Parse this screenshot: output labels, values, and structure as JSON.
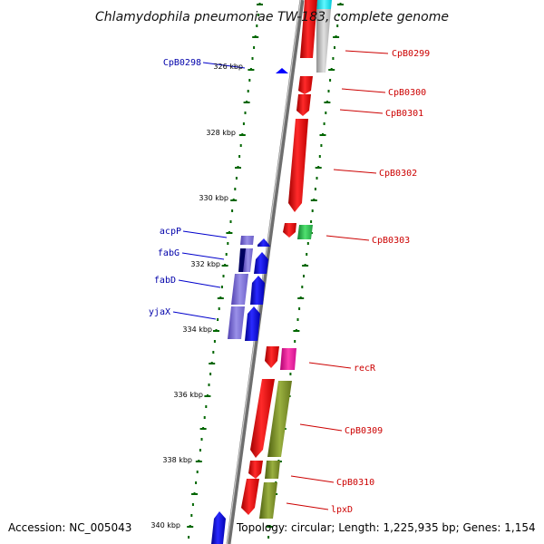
{
  "title": "Chlamydophila pneumoniae TW-183, complete genome",
  "footer": {
    "accession": "Accession: NC_005043",
    "summary": "Topology: circular; Length: 1,225,935 bp; Genes: 1,154"
  },
  "ticks": [
    "326 kbp",
    "328 kbp",
    "330 kbp",
    "332 kbp",
    "334 kbp",
    "336 kbp",
    "338 kbp",
    "340 kbp"
  ],
  "colors": {
    "forward_label": "#cc0000",
    "reverse_label": "#0000aa",
    "tick": "#006600",
    "backbone": "#7a7a7a"
  },
  "genes_right": [
    {
      "label": "CpB0299",
      "color": "#ff0000"
    },
    {
      "label": "CpB0300",
      "color": "#ff0000"
    },
    {
      "label": "CpB0301",
      "color": "#ff0000"
    },
    {
      "label": "CpB0302",
      "color": "#ff0000"
    },
    {
      "label": "CpB0303",
      "color": "#ff0000"
    },
    {
      "label": "recR",
      "color": "#ff0000"
    },
    {
      "label": "CpB0309",
      "color": "#ff0000"
    },
    {
      "label": "CpB0310",
      "color": "#ff0000"
    },
    {
      "label": "lpxD",
      "color": "#ff0000"
    }
  ],
  "genes_left": [
    {
      "label": "CpB0298",
      "color": "#0000ff"
    },
    {
      "label": "acpP",
      "color": "#0000ff"
    },
    {
      "label": "fabG",
      "color": "#0000ff"
    },
    {
      "label": "fabD",
      "color": "#0000ff"
    },
    {
      "label": "yjaX",
      "color": "#0000ff"
    }
  ]
}
